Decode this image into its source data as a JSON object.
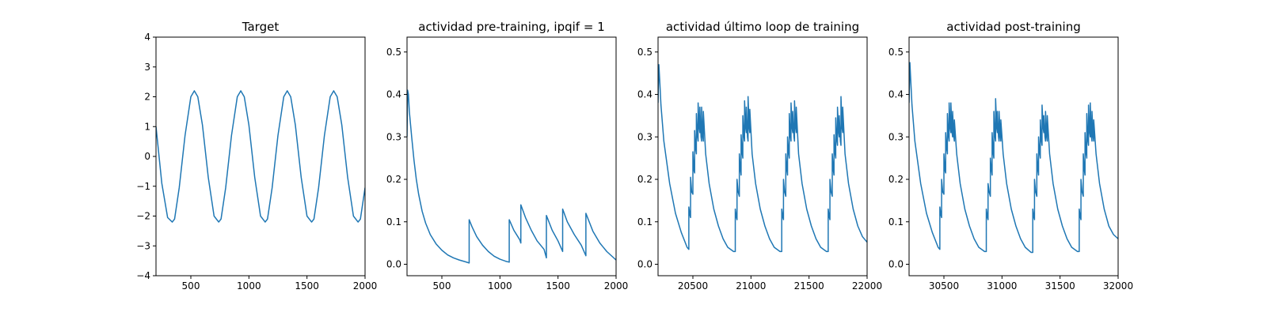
{
  "chart_data": [
    {
      "type": "line",
      "title": "Target",
      "xlabel": "",
      "ylabel": "",
      "xlim": [
        200,
        2000
      ],
      "ylim": [
        -4,
        4
      ],
      "xticks": [
        500,
        1000,
        1500,
        2000
      ],
      "yticks": [
        -4,
        -3,
        -2,
        -1,
        0,
        1,
        2,
        3,
        4
      ],
      "grid": false,
      "series": [
        {
          "color": "#1f77b4",
          "x": [
            200,
            250,
            300,
            340,
            360,
            400,
            450,
            500,
            530,
            560,
            600,
            650,
            700,
            740,
            760,
            800,
            850,
            900,
            930,
            960,
            1000,
            1050,
            1100,
            1140,
            1160,
            1200,
            1250,
            1300,
            1330,
            1360,
            1400,
            1450,
            1500,
            1540,
            1560,
            1600,
            1650,
            1700,
            1730,
            1760,
            1800,
            1850,
            1900,
            1940,
            1960,
            2000
          ],
          "y": [
            1.0,
            -0.9,
            -2.05,
            -2.2,
            -2.1,
            -1.05,
            0.7,
            2.0,
            2.2,
            2.0,
            1.05,
            -0.7,
            -2.0,
            -2.2,
            -2.1,
            -1.05,
            0.7,
            2.0,
            2.2,
            2.0,
            1.05,
            -0.7,
            -2.0,
            -2.2,
            -2.1,
            -1.05,
            0.7,
            2.0,
            2.2,
            2.0,
            1.05,
            -0.7,
            -2.0,
            -2.2,
            -2.1,
            -1.05,
            0.7,
            2.0,
            2.2,
            2.0,
            1.05,
            -0.7,
            -2.0,
            -2.2,
            -2.1,
            -1.05
          ]
        }
      ]
    },
    {
      "type": "line",
      "title": "actividad pre-training, ipqif = 1",
      "xlabel": "",
      "ylabel": "",
      "xlim": [
        200,
        2000
      ],
      "ylim": [
        -0.027,
        0.535
      ],
      "xticks": [
        500,
        1000,
        1500,
        2000
      ],
      "yticks": [
        0.0,
        0.1,
        0.2,
        0.3,
        0.4,
        0.5
      ],
      "grid": false,
      "series": [
        {
          "color": "#1f77b4",
          "x": [
            200,
            205,
            212,
            220,
            240,
            260,
            280,
            300,
            330,
            360,
            400,
            450,
            500,
            550,
            600,
            650,
            700,
            735,
            735,
            760,
            800,
            850,
            900,
            950,
            1000,
            1050,
            1080,
            1080,
            1120,
            1170,
            1180,
            1180,
            1220,
            1270,
            1320,
            1380,
            1400,
            1400,
            1450,
            1500,
            1540,
            1540,
            1580,
            1640,
            1700,
            1740,
            1740,
            1800,
            1860,
            1920,
            2000
          ],
          "y": [
            0.3,
            0.41,
            0.4,
            0.36,
            0.3,
            0.245,
            0.2,
            0.165,
            0.125,
            0.097,
            0.07,
            0.048,
            0.033,
            0.022,
            0.015,
            0.01,
            0.006,
            0.003,
            0.105,
            0.088,
            0.065,
            0.045,
            0.03,
            0.019,
            0.012,
            0.007,
            0.005,
            0.105,
            0.08,
            0.058,
            0.05,
            0.14,
            0.11,
            0.08,
            0.055,
            0.035,
            0.015,
            0.115,
            0.08,
            0.055,
            0.03,
            0.13,
            0.1,
            0.07,
            0.045,
            0.02,
            0.12,
            0.078,
            0.05,
            0.03,
            0.01
          ]
        }
      ]
    },
    {
      "type": "line",
      "title": "actividad último loop de training",
      "xlabel": "",
      "ylabel": "",
      "xlim": [
        20200,
        22000
      ],
      "ylim": [
        -0.027,
        0.535
      ],
      "xticks": [
        20500,
        21000,
        21500,
        22000
      ],
      "yticks": [
        0.0,
        0.1,
        0.2,
        0.3,
        0.4,
        0.5
      ],
      "grid": false,
      "series": [
        {
          "color": "#1f77b4",
          "x": [
            20200,
            20207,
            20215,
            20225,
            20250,
            20300,
            20350,
            20400,
            20450,
            20465,
            20465,
            20475,
            20480,
            20480,
            20490,
            20500,
            20500,
            20510,
            20515,
            20515,
            20525,
            20530,
            20530,
            20540,
            20545,
            20545,
            20555,
            20560,
            20560,
            20570,
            20575,
            20575,
            20585,
            20590,
            20590,
            20610,
            20640,
            20680,
            20720,
            20760,
            20800,
            20850,
            20865,
            20865,
            20875,
            20880,
            20880,
            20890,
            20900,
            20900,
            20910,
            20915,
            20915,
            20925,
            20930,
            20930,
            20940,
            20945,
            20945,
            20955,
            20960,
            20960,
            20970,
            20975,
            20975,
            20985,
            20990,
            20990,
            21010,
            21040,
            21080,
            21120,
            21160,
            21200,
            21250,
            21265,
            21265,
            21275,
            21280,
            21280,
            21290,
            21300,
            21300,
            21310,
            21315,
            21315,
            21325,
            21330,
            21330,
            21340,
            21345,
            21345,
            21355,
            21360,
            21360,
            21370,
            21375,
            21375,
            21385,
            21390,
            21390,
            21410,
            21440,
            21480,
            21520,
            21560,
            21600,
            21650,
            21665,
            21665,
            21675,
            21680,
            21680,
            21690,
            21700,
            21700,
            21710,
            21715,
            21715,
            21725,
            21730,
            21730,
            21740,
            21745,
            21745,
            21755,
            21760,
            21760,
            21770,
            21775,
            21775,
            21785,
            21790,
            21790,
            21810,
            21840,
            21880,
            21920,
            21960,
            22000
          ],
          "y": [
            0.38,
            0.47,
            0.43,
            0.375,
            0.29,
            0.19,
            0.12,
            0.075,
            0.04,
            0.035,
            0.135,
            0.115,
            0.11,
            0.205,
            0.17,
            0.165,
            0.265,
            0.22,
            0.215,
            0.315,
            0.27,
            0.26,
            0.355,
            0.3,
            0.29,
            0.38,
            0.32,
            0.31,
            0.37,
            0.3,
            0.29,
            0.37,
            0.3,
            0.29,
            0.36,
            0.26,
            0.19,
            0.13,
            0.09,
            0.06,
            0.04,
            0.03,
            0.03,
            0.13,
            0.11,
            0.105,
            0.2,
            0.17,
            0.16,
            0.26,
            0.22,
            0.21,
            0.305,
            0.26,
            0.25,
            0.35,
            0.3,
            0.29,
            0.385,
            0.32,
            0.31,
            0.37,
            0.3,
            0.29,
            0.395,
            0.32,
            0.31,
            0.365,
            0.26,
            0.19,
            0.13,
            0.09,
            0.06,
            0.04,
            0.03,
            0.03,
            0.13,
            0.11,
            0.105,
            0.2,
            0.17,
            0.16,
            0.26,
            0.22,
            0.21,
            0.3,
            0.26,
            0.25,
            0.355,
            0.3,
            0.29,
            0.38,
            0.32,
            0.31,
            0.36,
            0.3,
            0.29,
            0.385,
            0.32,
            0.31,
            0.37,
            0.26,
            0.19,
            0.13,
            0.09,
            0.06,
            0.04,
            0.03,
            0.03,
            0.13,
            0.11,
            0.105,
            0.2,
            0.17,
            0.16,
            0.26,
            0.22,
            0.21,
            0.305,
            0.26,
            0.25,
            0.345,
            0.29,
            0.28,
            0.37,
            0.31,
            0.3,
            0.35,
            0.29,
            0.28,
            0.395,
            0.32,
            0.31,
            0.37,
            0.26,
            0.19,
            0.13,
            0.09,
            0.065,
            0.052
          ]
        }
      ]
    },
    {
      "type": "line",
      "title": "actividad post-training",
      "xlabel": "",
      "ylabel": "",
      "xlim": [
        30200,
        32000
      ],
      "ylim": [
        -0.027,
        0.535
      ],
      "xticks": [
        30500,
        31000,
        31500,
        32000
      ],
      "yticks": [
        0.0,
        0.1,
        0.2,
        0.3,
        0.4,
        0.5
      ],
      "grid": false,
      "series": [
        {
          "color": "#1f77b4",
          "x": [
            30200,
            30207,
            30215,
            30225,
            30250,
            30300,
            30350,
            30400,
            30450,
            30465,
            30465,
            30475,
            30480,
            30480,
            30490,
            30500,
            30500,
            30510,
            30515,
            30515,
            30525,
            30530,
            30530,
            30540,
            30545,
            30545,
            30555,
            30560,
            30560,
            30570,
            30575,
            30575,
            30585,
            30590,
            30590,
            30610,
            30640,
            30680,
            30720,
            30760,
            30800,
            30850,
            30865,
            30865,
            30875,
            30880,
            30880,
            30890,
            30900,
            30900,
            30910,
            30915,
            30915,
            30925,
            30930,
            30930,
            30940,
            30945,
            30945,
            30955,
            30960,
            30960,
            30970,
            30975,
            30975,
            30985,
            30990,
            30990,
            31010,
            31040,
            31080,
            31120,
            31160,
            31200,
            31250,
            31265,
            31265,
            31275,
            31280,
            31280,
            31290,
            31300,
            31300,
            31310,
            31315,
            31315,
            31325,
            31330,
            31330,
            31340,
            31345,
            31345,
            31355,
            31360,
            31360,
            31370,
            31375,
            31375,
            31385,
            31390,
            31390,
            31410,
            31440,
            31480,
            31520,
            31560,
            31600,
            31650,
            31665,
            31665,
            31675,
            31680,
            31680,
            31690,
            31700,
            31700,
            31710,
            31715,
            31715,
            31725,
            31730,
            31730,
            31740,
            31745,
            31745,
            31755,
            31760,
            31760,
            31770,
            31775,
            31775,
            31785,
            31790,
            31790,
            31810,
            31840,
            31880,
            31920,
            31960,
            32000
          ],
          "y": [
            0.38,
            0.475,
            0.43,
            0.375,
            0.29,
            0.19,
            0.12,
            0.075,
            0.04,
            0.035,
            0.135,
            0.115,
            0.11,
            0.2,
            0.17,
            0.165,
            0.26,
            0.22,
            0.215,
            0.31,
            0.27,
            0.26,
            0.355,
            0.3,
            0.29,
            0.38,
            0.32,
            0.31,
            0.38,
            0.31,
            0.3,
            0.36,
            0.3,
            0.29,
            0.34,
            0.26,
            0.19,
            0.13,
            0.09,
            0.06,
            0.04,
            0.03,
            0.03,
            0.13,
            0.11,
            0.105,
            0.19,
            0.17,
            0.16,
            0.25,
            0.22,
            0.21,
            0.31,
            0.26,
            0.25,
            0.36,
            0.3,
            0.29,
            0.39,
            0.32,
            0.31,
            0.36,
            0.3,
            0.29,
            0.36,
            0.3,
            0.29,
            0.34,
            0.26,
            0.19,
            0.13,
            0.09,
            0.06,
            0.04,
            0.028,
            0.028,
            0.13,
            0.11,
            0.105,
            0.2,
            0.17,
            0.16,
            0.26,
            0.22,
            0.21,
            0.3,
            0.26,
            0.25,
            0.34,
            0.29,
            0.28,
            0.375,
            0.32,
            0.31,
            0.35,
            0.3,
            0.29,
            0.36,
            0.3,
            0.29,
            0.35,
            0.26,
            0.19,
            0.13,
            0.09,
            0.06,
            0.04,
            0.03,
            0.03,
            0.13,
            0.11,
            0.105,
            0.2,
            0.17,
            0.16,
            0.26,
            0.22,
            0.21,
            0.31,
            0.26,
            0.25,
            0.355,
            0.29,
            0.28,
            0.375,
            0.31,
            0.3,
            0.38,
            0.3,
            0.29,
            0.36,
            0.3,
            0.29,
            0.34,
            0.26,
            0.19,
            0.13,
            0.09,
            0.07,
            0.06
          ]
        }
      ]
    }
  ]
}
